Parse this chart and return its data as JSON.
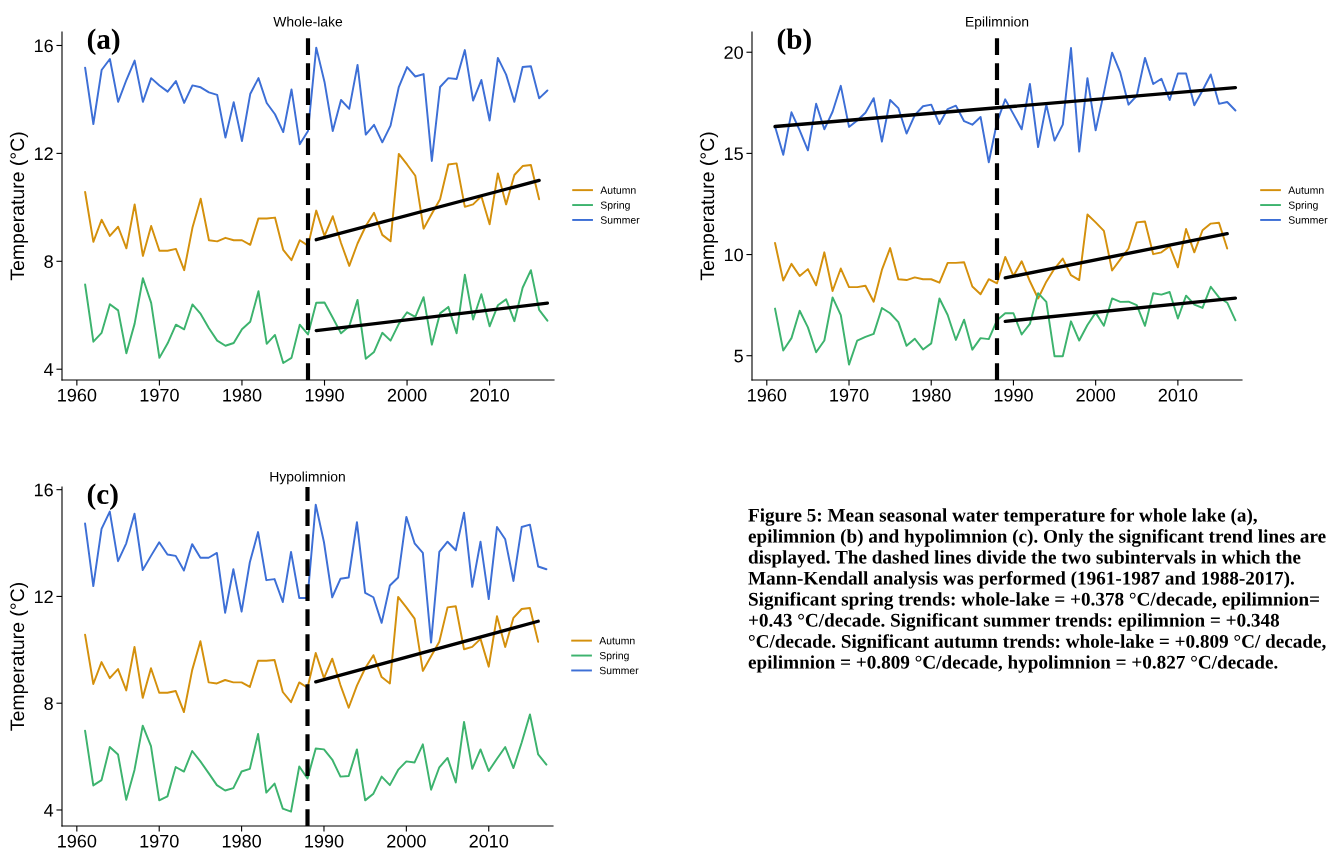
{
  "chart_data": [
    {
      "type": "line",
      "title": "Whole-lake",
      "ylabel": "Temperature (°C)",
      "legend": "right",
      "annotations": [
        "(a)"
      ],
      "x": [
        1961,
        1962,
        1963,
        1964,
        1965,
        1966,
        1967,
        1968,
        1969,
        1970,
        1971,
        1972,
        1973,
        1974,
        1975,
        1976,
        1977,
        1978,
        1979,
        1980,
        1981,
        1982,
        1983,
        1984,
        1985,
        1986,
        1987,
        1988,
        1989,
        1990,
        1991,
        1992,
        1993,
        1994,
        1995,
        1996,
        1997,
        1998,
        1999,
        2000,
        2001,
        2002,
        2003,
        2004,
        2005,
        2006,
        2007,
        2008,
        2009,
        2010,
        2011,
        2012,
        2013,
        2014,
        2015,
        2016,
        2017
      ],
      "xlim": [
        1958.2,
        2017.8
      ],
      "xticks": [
        1960,
        1970,
        1980,
        1990,
        2000,
        2010
      ],
      "ylim": [
        3.6,
        16.5
      ],
      "yticks": [
        4,
        8,
        12,
        16
      ],
      "ref_lines": [
        {
          "axis": "x",
          "value": 1988,
          "color": "#000000",
          "line_style": "dashed"
        }
      ],
      "series": [
        {
          "name": "Autumn",
          "color": "#d4900c",
          "values": [
            10.57,
            8.72,
            9.54,
            8.94,
            9.28,
            8.48,
            10.11,
            8.2,
            9.31,
            8.39,
            8.39,
            8.46,
            7.67,
            9.24,
            10.32,
            8.78,
            8.74,
            8.87,
            8.78,
            8.78,
            8.61,
            9.59,
            9.59,
            9.62,
            8.42,
            8.04,
            8.78,
            8.58,
            9.88,
            8.94,
            9.67,
            8.68,
            7.83,
            8.66,
            9.31,
            9.8,
            8.98,
            8.74,
            11.98,
            11.59,
            11.17,
            9.21,
            9.76,
            10.3,
            11.59,
            11.63,
            10.02,
            10.11,
            10.41,
            9.37,
            11.26,
            10.11,
            11.2,
            11.53,
            11.57,
            10.3,
            null
          ]
        },
        {
          "name": "Spring",
          "color": "#3db36e",
          "values": [
            7.14,
            5.02,
            5.35,
            6.41,
            6.18,
            4.59,
            5.69,
            7.37,
            6.46,
            4.42,
            4.96,
            5.65,
            5.48,
            6.4,
            6.05,
            5.52,
            5.06,
            4.87,
            4.97,
            5.48,
            5.76,
            6.89,
            4.94,
            5.27,
            4.23,
            4.42,
            5.65,
            5.29,
            6.46,
            6.47,
            5.91,
            5.33,
            5.59,
            6.57,
            4.39,
            4.64,
            5.35,
            5.06,
            5.68,
            6.11,
            5.94,
            6.67,
            4.91,
            6.07,
            6.31,
            5.33,
            7.5,
            5.84,
            6.78,
            5.59,
            6.37,
            6.59,
            5.78,
            7.02,
            7.67,
            6.2,
            5.8
          ]
        },
        {
          "name": "Summer",
          "color": "#3d6fd6",
          "values": [
            15.18,
            13.09,
            15.09,
            15.5,
            13.91,
            14.72,
            15.44,
            13.91,
            14.79,
            14.52,
            14.29,
            14.68,
            13.87,
            14.52,
            14.45,
            14.26,
            14.17,
            12.59,
            13.9,
            12.46,
            14.2,
            14.79,
            13.87,
            13.45,
            12.79,
            14.37,
            12.34,
            12.83,
            15.92,
            14.65,
            12.83,
            13.98,
            13.65,
            15.28,
            12.7,
            13.06,
            12.41,
            13.03,
            14.46,
            15.2,
            14.85,
            14.94,
            11.72,
            14.46,
            14.79,
            14.76,
            15.83,
            13.96,
            14.72,
            13.22,
            15.54,
            14.92,
            13.91,
            15.2,
            15.23,
            14.04,
            14.33
          ]
        },
        {
          "type": "line",
          "color": "#000000",
          "x": [
            1989,
            2016
          ],
          "values": [
            8.8,
            11.0
          ]
        },
        {
          "type": "line",
          "color": "#000000",
          "x": [
            1989,
            2017
          ],
          "values": [
            5.43,
            6.45
          ]
        }
      ]
    },
    {
      "type": "line",
      "title": "Epilimnion",
      "ylabel": "Temperature (°C)",
      "legend": "right",
      "annotations": [
        "(b)"
      ],
      "x": [
        1961,
        1962,
        1963,
        1964,
        1965,
        1966,
        1967,
        1968,
        1969,
        1970,
        1971,
        1972,
        1973,
        1974,
        1975,
        1976,
        1977,
        1978,
        1979,
        1980,
        1981,
        1982,
        1983,
        1984,
        1985,
        1986,
        1987,
        1988,
        1989,
        1990,
        1991,
        1992,
        1993,
        1994,
        1995,
        1996,
        1997,
        1998,
        1999,
        2000,
        2001,
        2002,
        2003,
        2004,
        2005,
        2006,
        2007,
        2008,
        2009,
        2010,
        2011,
        2012,
        2013,
        2014,
        2015,
        2016,
        2017
      ],
      "xlim": [
        1958.2,
        2017.8
      ],
      "xticks": [
        1960,
        1970,
        1980,
        1990,
        2000,
        2010
      ],
      "ylim": [
        3.8,
        21.0
      ],
      "yticks": [
        5,
        10,
        15,
        20
      ],
      "ref_lines": [
        {
          "axis": "x",
          "value": 1988,
          "color": "#000000",
          "line_style": "dashed"
        }
      ],
      "series": [
        {
          "name": "Autumn",
          "color": "#d4900c",
          "values": [
            10.57,
            8.72,
            9.54,
            8.94,
            9.28,
            8.48,
            10.11,
            8.2,
            9.31,
            8.39,
            8.39,
            8.46,
            7.67,
            9.24,
            10.32,
            8.78,
            8.74,
            8.87,
            8.78,
            8.78,
            8.61,
            9.59,
            9.59,
            9.62,
            8.42,
            8.04,
            8.78,
            8.58,
            9.88,
            8.94,
            9.67,
            8.68,
            7.83,
            8.66,
            9.31,
            9.8,
            8.98,
            8.74,
            11.98,
            11.59,
            11.17,
            9.21,
            9.76,
            10.3,
            11.59,
            11.63,
            10.02,
            10.11,
            10.41,
            9.37,
            11.26,
            10.11,
            11.2,
            11.53,
            11.57,
            10.3,
            null
          ]
        },
        {
          "name": "Spring",
          "color": "#3db36e",
          "values": [
            7.33,
            5.26,
            5.87,
            7.22,
            6.4,
            5.17,
            5.75,
            7.88,
            7.01,
            4.56,
            5.75,
            5.93,
            6.08,
            7.36,
            7.1,
            6.66,
            5.49,
            5.84,
            5.31,
            5.61,
            7.83,
            7.01,
            5.78,
            6.78,
            5.3,
            5.87,
            5.82,
            6.75,
            7.1,
            7.1,
            6.05,
            6.57,
            8.09,
            7.66,
            4.97,
            4.97,
            6.7,
            5.75,
            6.52,
            7.13,
            6.48,
            7.83,
            7.66,
            7.67,
            7.5,
            6.48,
            8.09,
            8.02,
            8.15,
            6.84,
            7.97,
            7.53,
            7.36,
            8.41,
            7.88,
            7.62,
            6.75
          ]
        },
        {
          "name": "Summer",
          "color": "#3d6fd6",
          "values": [
            16.33,
            14.93,
            17.03,
            16.14,
            15.15,
            17.45,
            16.19,
            17.06,
            18.34,
            16.31,
            16.63,
            17.01,
            17.73,
            15.58,
            17.64,
            17.24,
            15.98,
            16.89,
            17.33,
            17.41,
            16.45,
            17.19,
            17.36,
            16.59,
            16.42,
            16.8,
            14.56,
            16.54,
            17.67,
            16.94,
            16.19,
            18.43,
            15.31,
            17.41,
            15.63,
            16.42,
            20.21,
            15.09,
            18.72,
            16.14,
            17.99,
            19.98,
            18.99,
            17.41,
            17.85,
            19.72,
            18.43,
            18.69,
            17.64,
            18.95,
            18.95,
            17.38,
            18.11,
            18.9,
            17.45,
            17.54,
            17.12
          ]
        },
        {
          "type": "line",
          "color": "#000000",
          "x": [
            1961,
            2017
          ],
          "values": [
            16.33,
            18.25
          ]
        },
        {
          "type": "line",
          "color": "#000000",
          "x": [
            1989,
            2016
          ],
          "values": [
            8.85,
            11.03
          ]
        },
        {
          "type": "line",
          "color": "#000000",
          "x": [
            1989,
            2017
          ],
          "values": [
            6.7,
            7.85
          ]
        }
      ]
    },
    {
      "type": "line",
      "title": "Hypolimnion",
      "ylabel": "Temperature (°C)",
      "legend": "right",
      "annotations": [
        "(c)",
        "Figure 5: Mean seasonal water temperature for whole lake (a), epilimnion (b) and hypolimnion (c). Only the significant trend lines are displayed. The dashed lines divide the two subintervals in which the Mann-Kendall analysis was performed (1961-1987 and 1988-2017). Significant spring trends: whole-lake = +0.378 °C/decade, epilimnion= +0.43 °C/decade. Significant summer trends: epilimnion = +0.348 °C/decade. Significant autumn trends: whole-lake = +0.809 °C/ decade, epilimnion = +0.809 °C/decade, hypolimnion = +0.827 °C/decade."
      ],
      "x": [
        1961,
        1962,
        1963,
        1964,
        1965,
        1966,
        1967,
        1968,
        1969,
        1970,
        1971,
        1972,
        1973,
        1974,
        1975,
        1976,
        1977,
        1978,
        1979,
        1980,
        1981,
        1982,
        1983,
        1984,
        1985,
        1986,
        1987,
        1988,
        1989,
        1990,
        1991,
        1992,
        1993,
        1994,
        1995,
        1996,
        1997,
        1998,
        1999,
        2000,
        2001,
        2002,
        2003,
        2004,
        2005,
        2006,
        2007,
        2008,
        2009,
        2010,
        2011,
        2012,
        2013,
        2014,
        2015,
        2016,
        2017
      ],
      "xlim": [
        1958.2,
        2017.8
      ],
      "xticks": [
        1960,
        1970,
        1980,
        1990,
        2000,
        2010
      ],
      "ylim": [
        3.4,
        16.1
      ],
      "yticks": [
        4,
        8,
        12,
        16
      ],
      "ref_lines": [
        {
          "axis": "x",
          "value": 1988,
          "color": "#000000",
          "line_style": "dashed"
        }
      ],
      "series": [
        {
          "name": "Autumn",
          "color": "#d4900c",
          "values": [
            10.57,
            8.72,
            9.54,
            8.94,
            9.28,
            8.48,
            10.11,
            8.2,
            9.31,
            8.39,
            8.39,
            8.46,
            7.67,
            9.24,
            10.32,
            8.78,
            8.74,
            8.87,
            8.78,
            8.78,
            8.61,
            9.59,
            9.59,
            9.62,
            8.42,
            8.04,
            8.78,
            8.58,
            9.88,
            8.94,
            9.67,
            8.68,
            7.83,
            8.66,
            9.31,
            9.8,
            8.98,
            8.74,
            11.98,
            11.59,
            11.17,
            9.21,
            9.76,
            10.3,
            11.59,
            11.63,
            10.02,
            10.11,
            10.41,
            9.37,
            11.26,
            10.11,
            11.2,
            11.53,
            11.57,
            10.3,
            null
          ]
        },
        {
          "name": "Spring",
          "color": "#3db36e",
          "values": [
            6.97,
            4.92,
            5.12,
            6.36,
            6.08,
            4.38,
            5.5,
            7.16,
            6.39,
            4.36,
            4.51,
            5.61,
            5.44,
            6.21,
            5.82,
            5.38,
            4.93,
            4.73,
            4.82,
            5.44,
            5.54,
            6.85,
            4.65,
            4.99,
            4.05,
            3.94,
            5.63,
            5.18,
            6.3,
            6.27,
            5.89,
            5.25,
            5.27,
            6.27,
            4.36,
            4.61,
            5.25,
            4.93,
            5.5,
            5.82,
            5.78,
            6.46,
            4.76,
            5.6,
            5.95,
            5.03,
            7.3,
            5.54,
            6.27,
            5.46,
            5.92,
            6.36,
            5.57,
            6.53,
            7.58,
            6.08,
            5.7
          ]
        },
        {
          "name": "Summer",
          "color": "#3d6fd6",
          "values": [
            14.73,
            12.39,
            14.53,
            15.18,
            13.32,
            13.99,
            15.1,
            12.99,
            13.52,
            14.03,
            13.57,
            13.52,
            12.97,
            13.96,
            13.45,
            13.45,
            13.63,
            11.39,
            13.02,
            11.43,
            13.28,
            14.41,
            12.61,
            12.65,
            11.79,
            13.67,
            11.94,
            11.94,
            15.44,
            14.03,
            11.97,
            12.66,
            12.71,
            14.78,
            12.13,
            11.97,
            11.01,
            12.41,
            12.71,
            14.98,
            13.99,
            13.63,
            10.27,
            13.67,
            14.05,
            13.73,
            15.14,
            12.36,
            14.05,
            11.9,
            14.6,
            14.14,
            12.58,
            14.6,
            14.69,
            13.12,
            13.02
          ]
        },
        {
          "type": "line",
          "color": "#000000",
          "x": [
            1989,
            2016
          ],
          "values": [
            8.8,
            11.07
          ]
        }
      ]
    }
  ]
}
